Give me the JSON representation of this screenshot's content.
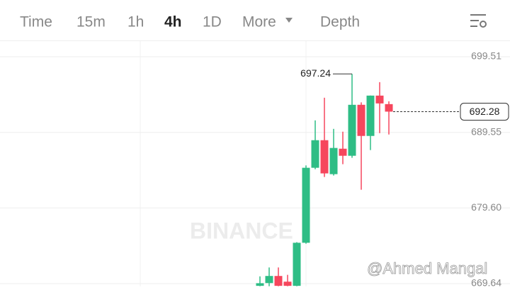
{
  "toolbar": {
    "items": [
      "Time",
      "15m",
      "1h",
      "4h",
      "1D",
      "More",
      "Depth"
    ],
    "active": "4h"
  },
  "watermarks": [
    "BINANCE",
    "@Ahmed Mangal"
  ],
  "chart_data": {
    "type": "candlestick",
    "categories": [
      null,
      null,
      null,
      null,
      null,
      null,
      null,
      null,
      null,
      null,
      null,
      null,
      null,
      null,
      null
    ],
    "open": [
      669.35,
      669.72,
      670.65,
      669.9,
      669.35,
      675.02,
      684.89,
      688.52,
      684.05,
      687.4,
      686.47,
      693.18,
      689.08,
      694.39,
      693.27
    ],
    "high": [
      670.6,
      671.77,
      671.77,
      670.8,
      675.1,
      685.2,
      691.13,
      694.11,
      690.01,
      689.64,
      697.24,
      693.5,
      694.4,
      696.16,
      693.64
    ],
    "low": [
      669.3,
      669.3,
      669.3,
      669.3,
      669.3,
      674.9,
      684.7,
      683.68,
      683.87,
      685.36,
      686.2,
      682.0,
      687.22,
      689.45,
      689.27
    ],
    "close": [
      669.7,
      670.65,
      669.35,
      669.35,
      675.02,
      684.89,
      688.52,
      684.15,
      687.5,
      686.47,
      693.18,
      689.08,
      694.39,
      693.36,
      692.28
    ],
    "up_color": "#2ebd85",
    "down_color": "#f6465d",
    "ylim": [
      669.27,
      701.56
    ],
    "yticks": [
      699.51,
      689.55,
      {
        "value": 679.6,
        "label": "679.60"
      },
      669.64
    ],
    "grid": true
  }
}
